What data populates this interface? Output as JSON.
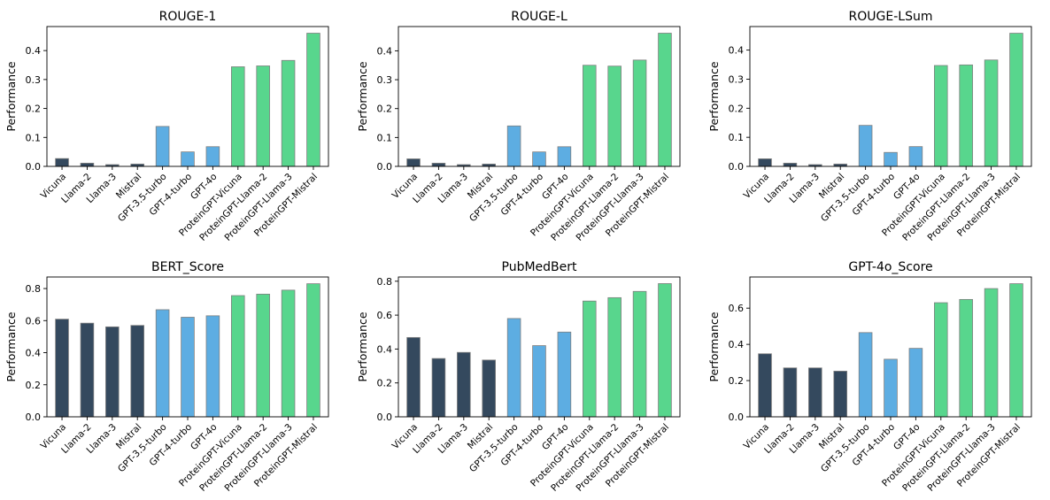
{
  "colors": {
    "open_models": "#34495e",
    "gpt_models": "#5dade2",
    "proteingpt_models": "#58d68d",
    "bar_edge": "#7f7f7f"
  },
  "chart_data": [
    {
      "type": "bar",
      "title": "ROUGE-1",
      "xlabel": "",
      "ylabel": "Performance",
      "categories": [
        "Vicuna",
        "Llama-2",
        "Llama-3",
        "Mistral",
        "GPT-3.5-turbo",
        "GPT-4-turbo",
        "GPT-4o",
        "ProteinGPT-Vicuna",
        "ProteinGPT-Llama-2",
        "ProteinGPT-Llama-3",
        "ProteinGPT-Mistral"
      ],
      "values": [
        0.027,
        0.011,
        0.006,
        0.008,
        0.138,
        0.05,
        0.068,
        0.344,
        0.347,
        0.366,
        0.46
      ],
      "ylim": [
        0,
        0.483
      ],
      "yticks": [
        "0.0",
        "0.1",
        "0.2",
        "0.3",
        "0.4"
      ],
      "grid": false
    },
    {
      "type": "bar",
      "title": "ROUGE-L",
      "xlabel": "",
      "ylabel": "Performance",
      "categories": [
        "Vicuna",
        "Llama-2",
        "Llama-3",
        "Mistral",
        "GPT-3.5-turbo",
        "GPT-4-turbo",
        "GPT-4o",
        "ProteinGPT-Vicuna",
        "ProteinGPT-Llama-2",
        "ProteinGPT-Llama-3",
        "ProteinGPT-Mistral"
      ],
      "values": [
        0.026,
        0.011,
        0.006,
        0.008,
        0.14,
        0.05,
        0.068,
        0.35,
        0.347,
        0.368,
        0.461
      ],
      "ylim": [
        0,
        0.484
      ],
      "yticks": [
        "0.0",
        "0.1",
        "0.2",
        "0.3",
        "0.4"
      ],
      "grid": false
    },
    {
      "type": "bar",
      "title": "ROUGE-LSum",
      "xlabel": "",
      "ylabel": "Performance",
      "categories": [
        "Vicuna",
        "Llama-2",
        "Llama-3",
        "Mistral",
        "GPT-3.5-turbo",
        "GPT-4-turbo",
        "GPT-4o",
        "ProteinGPT-Vicuna",
        "ProteinGPT-Llama-2",
        "ProteinGPT-Llama-3",
        "ProteinGPT-Mistral"
      ],
      "values": [
        0.026,
        0.011,
        0.006,
        0.008,
        0.141,
        0.048,
        0.068,
        0.347,
        0.349,
        0.366,
        0.458
      ],
      "ylim": [
        0,
        0.481
      ],
      "yticks": [
        "0.0",
        "0.1",
        "0.2",
        "0.3",
        "0.4"
      ],
      "grid": false
    },
    {
      "type": "bar",
      "title": "BERT_Score",
      "xlabel": "",
      "ylabel": "Performance",
      "categories": [
        "Vicuna",
        "Llama-2",
        "Llama-3",
        "Mistral",
        "GPT-3.5-turbo",
        "GPT-4-turbo",
        "GPT-4o",
        "ProteinGPT-Vicuna",
        "ProteinGPT-Llama-2",
        "ProteinGPT-Llama-3",
        "ProteinGPT-Mistral"
      ],
      "values": [
        0.609,
        0.584,
        0.561,
        0.57,
        0.668,
        0.621,
        0.63,
        0.756,
        0.765,
        0.79,
        0.83
      ],
      "ylim": [
        0,
        0.872
      ],
      "yticks": [
        "0.0",
        "0.2",
        "0.4",
        "0.6",
        "0.8"
      ],
      "grid": false
    },
    {
      "type": "bar",
      "title": "PubMedBert",
      "xlabel": "",
      "ylabel": "Performance",
      "categories": [
        "Vicuna",
        "Llama-2",
        "Llama-3",
        "Mistral",
        "GPT-3.5-turbo",
        "GPT-4-turbo",
        "GPT-4o",
        "ProteinGPT-Vicuna",
        "ProteinGPT-Llama-2",
        "ProteinGPT-Llama-3",
        "ProteinGPT-Mistral"
      ],
      "values": [
        0.468,
        0.344,
        0.38,
        0.335,
        0.58,
        0.42,
        0.5,
        0.683,
        0.703,
        0.74,
        0.786
      ],
      "ylim": [
        0,
        0.825
      ],
      "yticks": [
        "0.0",
        "0.2",
        "0.4",
        "0.6",
        "0.8"
      ],
      "grid": false
    },
    {
      "type": "bar",
      "title": "GPT-4o_Score",
      "xlabel": "",
      "ylabel": "Performance",
      "categories": [
        "Vicuna",
        "Llama-2",
        "Llama-3",
        "Mistral",
        "GPT-3.5-turbo",
        "GPT-4-turbo",
        "GPT-4o",
        "ProteinGPT-Vicuna",
        "ProteinGPT-Llama-2",
        "ProteinGPT-Llama-3",
        "ProteinGPT-Mistral"
      ],
      "values": [
        0.348,
        0.27,
        0.27,
        0.252,
        0.465,
        0.318,
        0.378,
        0.63,
        0.648,
        0.708,
        0.735
      ],
      "ylim": [
        0,
        0.772
      ],
      "yticks": [
        "0.0",
        "0.2",
        "0.4",
        "0.6"
      ],
      "grid": false
    }
  ]
}
